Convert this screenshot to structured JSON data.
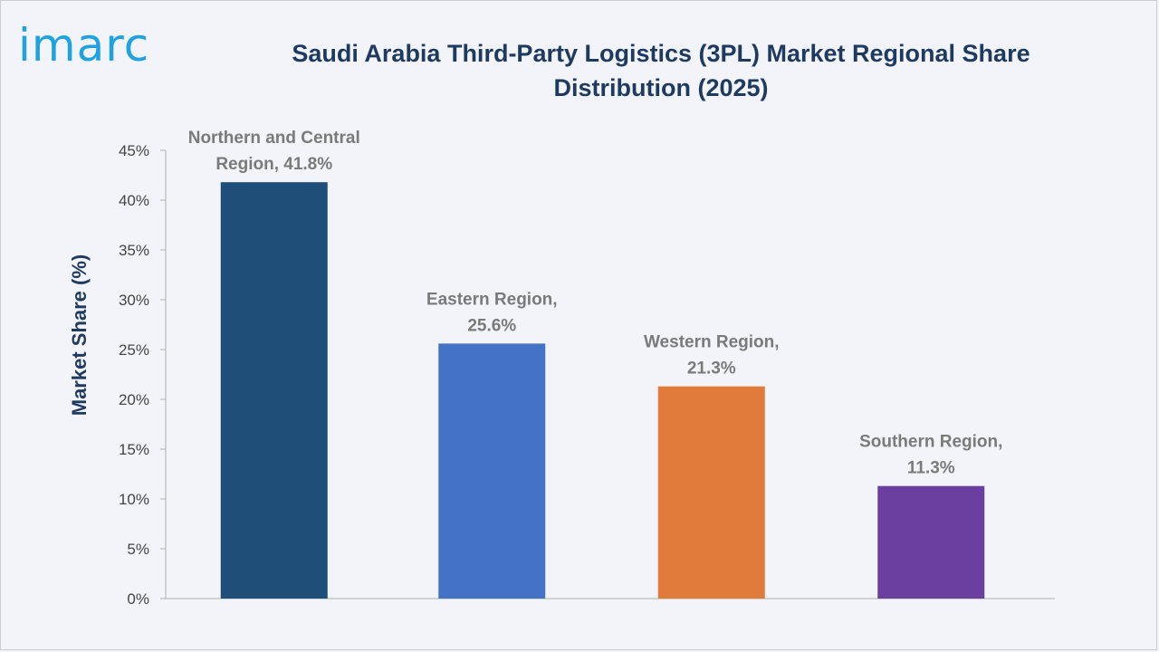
{
  "logo": {
    "text": "imarc"
  },
  "chart_data": {
    "type": "bar",
    "title": "Saudi Arabia Third-Party Logistics (3PL) Market Regional Share Distribution (2025)",
    "ylabel": "Market Share (%)",
    "xlabel": "",
    "ylim": [
      0,
      45
    ],
    "yticks": [
      0,
      5,
      10,
      15,
      20,
      25,
      30,
      35,
      40,
      45
    ],
    "ytick_labels": [
      "0%",
      "5%",
      "10%",
      "15%",
      "20%",
      "25%",
      "30%",
      "35%",
      "40%",
      "45%"
    ],
    "grid": false,
    "categories": [
      "Northern and Central Region",
      "Eastern Region",
      "Western Region",
      "Southern Region"
    ],
    "values": [
      41.8,
      25.6,
      21.3,
      11.3
    ],
    "data_labels": [
      [
        "Northern and Central",
        "Region, 41.8%"
      ],
      [
        "Eastern Region,",
        "25.6%"
      ],
      [
        "Western Region,",
        "21.3%"
      ],
      [
        "Southern Region,",
        "11.3%"
      ]
    ],
    "colors": [
      "#1f4e79",
      "#4472c4",
      "#e07b39",
      "#6b3fa0"
    ]
  }
}
